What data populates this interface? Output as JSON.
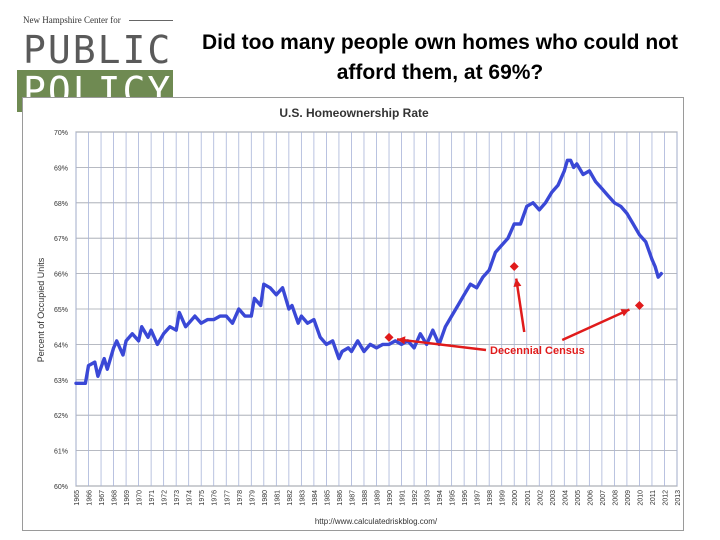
{
  "logo": {
    "top_text": "New Hampshire Center for",
    "line1": "PUBLIC",
    "line2": "POLICY"
  },
  "slide_title": "Did too many people own homes who could not afford them, at 69%?",
  "chart_data": {
    "type": "line",
    "title": "U.S. Homeownership Rate",
    "xlabel": "",
    "ylabel": "Percent of Occupied Units",
    "ylim": [
      60,
      70
    ],
    "xlim": [
      1965,
      2013
    ],
    "y_ticks": [
      "60%",
      "61%",
      "62%",
      "63%",
      "64%",
      "65%",
      "66%",
      "67%",
      "68%",
      "69%",
      "70%"
    ],
    "x_ticks": [
      "1965",
      "1966",
      "1967",
      "1968",
      "1969",
      "1970",
      "1971",
      "1972",
      "1973",
      "1974",
      "1975",
      "1976",
      "1977",
      "1978",
      "1979",
      "1980",
      "1981",
      "1982",
      "1983",
      "1984",
      "1985",
      "1986",
      "1987",
      "1988",
      "1989",
      "1990",
      "1991",
      "1992",
      "1993",
      "1994",
      "1995",
      "1996",
      "1997",
      "1998",
      "1999",
      "2000",
      "2001",
      "2002",
      "2003",
      "2004",
      "2005",
      "2006",
      "2007",
      "2008",
      "2009",
      "2010",
      "2011",
      "2012",
      "2013"
    ],
    "grid": true,
    "source": "http://www.calculatedriskblog.com/",
    "series": [
      {
        "name": "",
        "color": "#3a48d6",
        "x": [
          1965.0,
          1965.75,
          1966.0,
          1966.5,
          1966.75,
          1967.25,
          1967.5,
          1968.0,
          1968.25,
          1968.75,
          1969.0,
          1969.5,
          1970.0,
          1970.25,
          1970.75,
          1971.0,
          1971.5,
          1972.0,
          1972.5,
          1973.0,
          1973.25,
          1973.75,
          1974.0,
          1974.5,
          1975.0,
          1975.5,
          1976.0,
          1976.5,
          1977.0,
          1977.5,
          1978.0,
          1978.5,
          1979.0,
          1979.25,
          1979.75,
          1980.0,
          1980.5,
          1981.0,
          1981.5,
          1982.0,
          1982.25,
          1982.75,
          1983.0,
          1983.5,
          1984.0,
          1984.5,
          1985.0,
          1985.5,
          1986.0,
          1986.25,
          1986.75,
          1987.0,
          1987.5,
          1988.0,
          1988.5,
          1989.0,
          1989.5,
          1990.0,
          1990.5,
          1991.0,
          1991.5,
          1992.0,
          1992.5,
          1993.0,
          1993.5,
          1994.0,
          1994.5,
          1995.0,
          1995.5,
          1996.0,
          1996.5,
          1997.0,
          1997.5,
          1998.0,
          1998.5,
          1999.0,
          1999.5,
          2000.0,
          2000.5,
          2001.0,
          2001.5,
          2002.0,
          2002.5,
          2003.0,
          2003.5,
          2004.0,
          2004.25,
          2004.5,
          2004.75,
          2005.0,
          2005.5,
          2006.0,
          2006.5,
          2007.0,
          2007.5,
          2008.0,
          2008.5,
          2009.0,
          2009.5,
          2010.0,
          2010.5,
          2011.0,
          2011.25,
          2011.5,
          2011.75
        ],
        "values": [
          62.9,
          62.9,
          63.4,
          63.5,
          63.1,
          63.6,
          63.3,
          63.9,
          64.1,
          63.7,
          64.1,
          64.3,
          64.1,
          64.5,
          64.2,
          64.4,
          64.0,
          64.3,
          64.5,
          64.4,
          64.9,
          64.5,
          64.6,
          64.8,
          64.6,
          64.7,
          64.7,
          64.8,
          64.8,
          64.6,
          65.0,
          64.8,
          64.8,
          65.3,
          65.1,
          65.7,
          65.6,
          65.4,
          65.6,
          65.0,
          65.1,
          64.6,
          64.8,
          64.6,
          64.7,
          64.2,
          64.0,
          64.1,
          63.6,
          63.8,
          63.9,
          63.8,
          64.1,
          63.8,
          64.0,
          63.9,
          64.0,
          64.0,
          64.1,
          64.0,
          64.1,
          63.9,
          64.3,
          64.0,
          64.4,
          64.0,
          64.5,
          64.8,
          65.1,
          65.4,
          65.7,
          65.6,
          65.9,
          66.1,
          66.6,
          66.8,
          67.0,
          67.4,
          67.4,
          67.9,
          68.0,
          67.8,
          68.0,
          68.3,
          68.5,
          68.9,
          69.2,
          69.2,
          69.0,
          69.1,
          68.8,
          68.9,
          68.6,
          68.4,
          68.2,
          68.0,
          67.9,
          67.7,
          67.4,
          67.1,
          66.9,
          66.4,
          66.2,
          65.9,
          66.0
        ]
      }
    ],
    "census_points": [
      {
        "x": 1990,
        "y": 64.2
      },
      {
        "x": 2000,
        "y": 66.2
      },
      {
        "x": 2010,
        "y": 65.1
      }
    ],
    "annotation": "Decennial Census",
    "marker_color": "#e01b1b"
  }
}
